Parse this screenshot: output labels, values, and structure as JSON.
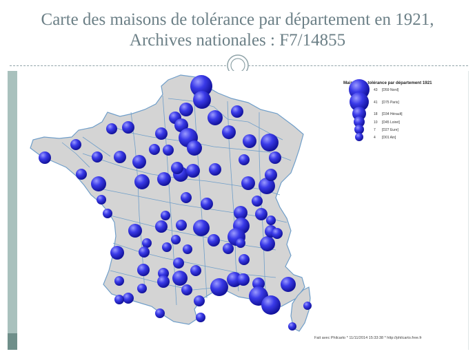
{
  "slide": {
    "title_line1": "Carte des maisons de tolérance par département en 1921,",
    "title_line2": "Archives nationales : F7/14855"
  },
  "map": {
    "marker_color": "#2a2ad6",
    "land_color": "#d4d4d4",
    "border_color": "#6f9ec9",
    "legend": {
      "title": "Maisons  de tolérance par département 1921",
      "entries": [
        {
          "value": "43",
          "label": "[D59 Nord]"
        },
        {
          "value": "41",
          "label": "[D75 Paris]"
        },
        {
          "value": "18",
          "label": "[D34 Hérault]"
        },
        {
          "value": "10",
          "label": "[D45 Loiret]"
        },
        {
          "value": "7",
          "label": "[D27 Eure]"
        },
        {
          "value": "4",
          "label": "[D01 Ain]"
        }
      ]
    },
    "credit": "Fait avec Philcarto * 11/11/2014 15:33:38 * http://philcarto.free.fr"
  }
}
